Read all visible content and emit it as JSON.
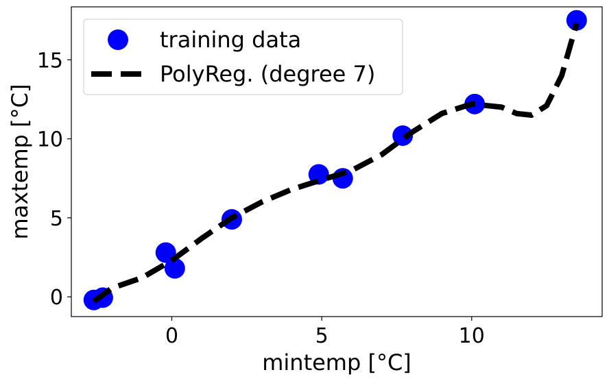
{
  "chart_data": {
    "type": "scatter",
    "title": "",
    "xlabel": "mintemp [°C]",
    "ylabel": "maxtemp [°C]",
    "xlim": [
      -3.35,
      14.35
    ],
    "ylim": [
      -1.25,
      18.35
    ],
    "xticks": [
      0,
      5,
      10
    ],
    "yticks": [
      0,
      5,
      10,
      15
    ],
    "grid": false,
    "legend_position": "top-left",
    "series": [
      {
        "name": "training data",
        "kind": "scatter",
        "color": "#0000ff",
        "points": [
          {
            "x": -2.6,
            "y": -0.2
          },
          {
            "x": -2.3,
            "y": -0.05
          },
          {
            "x": -0.2,
            "y": 2.8
          },
          {
            "x": 0.1,
            "y": 1.8
          },
          {
            "x": 2.0,
            "y": 4.9
          },
          {
            "x": 4.9,
            "y": 7.75
          },
          {
            "x": 5.7,
            "y": 7.5
          },
          {
            "x": 7.7,
            "y": 10.2
          },
          {
            "x": 10.1,
            "y": 12.2
          },
          {
            "x": 13.5,
            "y": 17.5
          }
        ]
      },
      {
        "name": "PolyReg. (degree 7)",
        "kind": "line",
        "style": "dashed",
        "color": "#000000",
        "points": [
          {
            "x": -2.6,
            "y": -0.3
          },
          {
            "x": -2.0,
            "y": 0.55
          },
          {
            "x": -1.0,
            "y": 1.2
          },
          {
            "x": 0.0,
            "y": 2.3
          },
          {
            "x": 1.0,
            "y": 3.7
          },
          {
            "x": 2.0,
            "y": 5.0
          },
          {
            "x": 3.0,
            "y": 6.0
          },
          {
            "x": 4.0,
            "y": 6.8
          },
          {
            "x": 5.0,
            "y": 7.4
          },
          {
            "x": 6.0,
            "y": 8.0
          },
          {
            "x": 7.0,
            "y": 9.0
          },
          {
            "x": 8.0,
            "y": 10.4
          },
          {
            "x": 9.0,
            "y": 11.6
          },
          {
            "x": 10.0,
            "y": 12.2
          },
          {
            "x": 11.0,
            "y": 12.0
          },
          {
            "x": 11.5,
            "y": 11.6
          },
          {
            "x": 12.0,
            "y": 11.5
          },
          {
            "x": 12.5,
            "y": 12.1
          },
          {
            "x": 13.0,
            "y": 14.0
          },
          {
            "x": 13.5,
            "y": 17.3
          }
        ]
      }
    ]
  }
}
